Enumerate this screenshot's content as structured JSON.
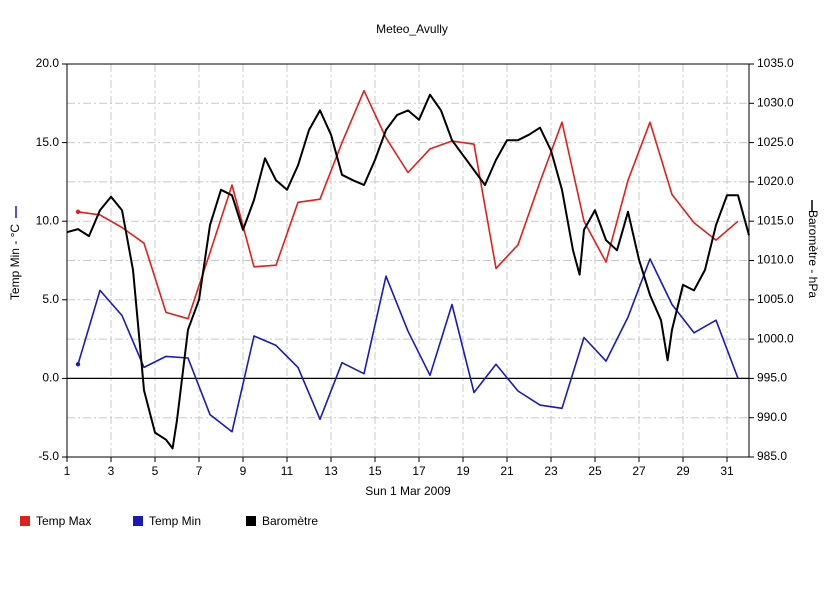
{
  "chart_data": {
    "type": "line",
    "title": "Meteo_Avully",
    "xlabel": "Sun 1 Mar 2009",
    "ylabel": "Temp Min - °C",
    "y2label": "Baromètre - hPa",
    "xlim": [
      1,
      32
    ],
    "xticks": [
      1,
      3,
      5,
      7,
      9,
      11,
      13,
      15,
      17,
      19,
      21,
      23,
      25,
      27,
      29,
      31
    ],
    "ylim": [
      -5,
      20
    ],
    "yticks": [
      {
        "value": -5,
        "label": "-5.0"
      },
      {
        "value": 0,
        "label": "0.0"
      },
      {
        "value": 5,
        "label": "5.0"
      },
      {
        "value": 10,
        "label": "10.0"
      },
      {
        "value": 15,
        "label": "15.0"
      },
      {
        "value": 20,
        "label": "20.0"
      }
    ],
    "y2lim": [
      985,
      1035
    ],
    "y2ticks": [
      {
        "value": 985,
        "label": "985.0"
      },
      {
        "value": 990,
        "label": "990.0"
      },
      {
        "value": 995,
        "label": "995.0"
      },
      {
        "value": 1000,
        "label": "1000.0"
      },
      {
        "value": 1005,
        "label": "1005.0"
      },
      {
        "value": 1010,
        "label": "1010.0"
      },
      {
        "value": 1015,
        "label": "1015.0"
      },
      {
        "value": 1020,
        "label": "1020.0"
      },
      {
        "value": 1025,
        "label": "1025.0"
      },
      {
        "value": 1030,
        "label": "1030.0"
      },
      {
        "value": 1035,
        "label": "1035.0"
      }
    ],
    "grid": true,
    "x": [
      1.5,
      2.5,
      3.5,
      4.5,
      5.5,
      6.5,
      7.5,
      8.5,
      9.5,
      10.5,
      11.5,
      12.5,
      13.5,
      14.5,
      15.5,
      16.5,
      17.5,
      18.5,
      19.5,
      20.5,
      21.5,
      22.5,
      23.5,
      24.5,
      25.5,
      26.5,
      27.5,
      28.5,
      29.5,
      30.5,
      31.5
    ],
    "series": [
      {
        "name": "Temp Max",
        "color": "#e0201c",
        "values": [
          10.6,
          10.4,
          9.6,
          8.6,
          4.2,
          3.8,
          8.0,
          12.3,
          7.1,
          7.2,
          11.2,
          11.4,
          15.0,
          18.3,
          15.3,
          13.1,
          14.6,
          15.1,
          14.9,
          7.0,
          8.5,
          12.5,
          16.3,
          10.0,
          7.4,
          12.6,
          16.3,
          11.7,
          9.9,
          8.8,
          10.0
        ]
      },
      {
        "name": "Temp Min",
        "color": "#1a1ab8",
        "values": [
          0.9,
          5.6,
          4.0,
          0.7,
          1.4,
          1.3,
          -2.3,
          -3.4,
          2.7,
          2.1,
          0.7,
          -2.6,
          1.0,
          0.3,
          6.5,
          3.0,
          0.2,
          4.7,
          -0.9,
          0.9,
          -0.8,
          -1.7,
          -1.9,
          2.6,
          1.1,
          3.9,
          7.6,
          4.7,
          2.9,
          3.7,
          0.0
        ]
      },
      {
        "name": "Baromètre",
        "color": "#000000",
        "axis": "y2",
        "x": [
          1,
          1.5,
          2,
          2.5,
          3,
          3.5,
          4,
          4.3,
          4.5,
          5,
          5.5,
          5.8,
          6,
          6.5,
          7,
          7.5,
          8,
          8.5,
          9,
          9.5,
          10,
          10.5,
          11,
          11.5,
          12,
          12.5,
          13,
          13.5,
          14,
          14.5,
          15,
          15.5,
          16,
          16.5,
          17,
          17.5,
          18,
          18.5,
          19,
          19.5,
          20,
          20.5,
          21,
          21.5,
          22,
          22.5,
          23,
          23.5,
          24,
          24.3,
          24.5,
          25,
          25.5,
          26,
          26.5,
          27,
          27.5,
          28,
          28.3,
          28.5,
          29,
          29.5,
          30,
          30.5,
          31,
          31.5,
          32
        ],
        "values": [
          1013.6,
          1014,
          1013.1,
          1016.4,
          1018.1,
          1016.4,
          1008.8,
          999.7,
          993.5,
          988.1,
          987.2,
          986.1,
          989.7,
          1001.2,
          1005,
          1014.5,
          1019,
          1018.3,
          1013.9,
          1017.7,
          1023,
          1020.2,
          1019,
          1022.1,
          1026.6,
          1029.1,
          1026,
          1020.9,
          1020.2,
          1019.6,
          1022.8,
          1026.6,
          1028.5,
          1029.1,
          1027.9,
          1031.1,
          1029.1,
          1025.3,
          1023.4,
          1021.5,
          1019.6,
          1022.8,
          1025.3,
          1025.3,
          1026,
          1026.9,
          1024,
          1019,
          1011.3,
          1008.2,
          1013.9,
          1016.4,
          1012.6,
          1011.3,
          1016.2,
          1010.1,
          1005.6,
          1002.4,
          997.3,
          1001.2,
          1006.9,
          1006.2,
          1008.8,
          1014.5,
          1018.3,
          1018.3,
          1013.2
        ]
      }
    ]
  }
}
